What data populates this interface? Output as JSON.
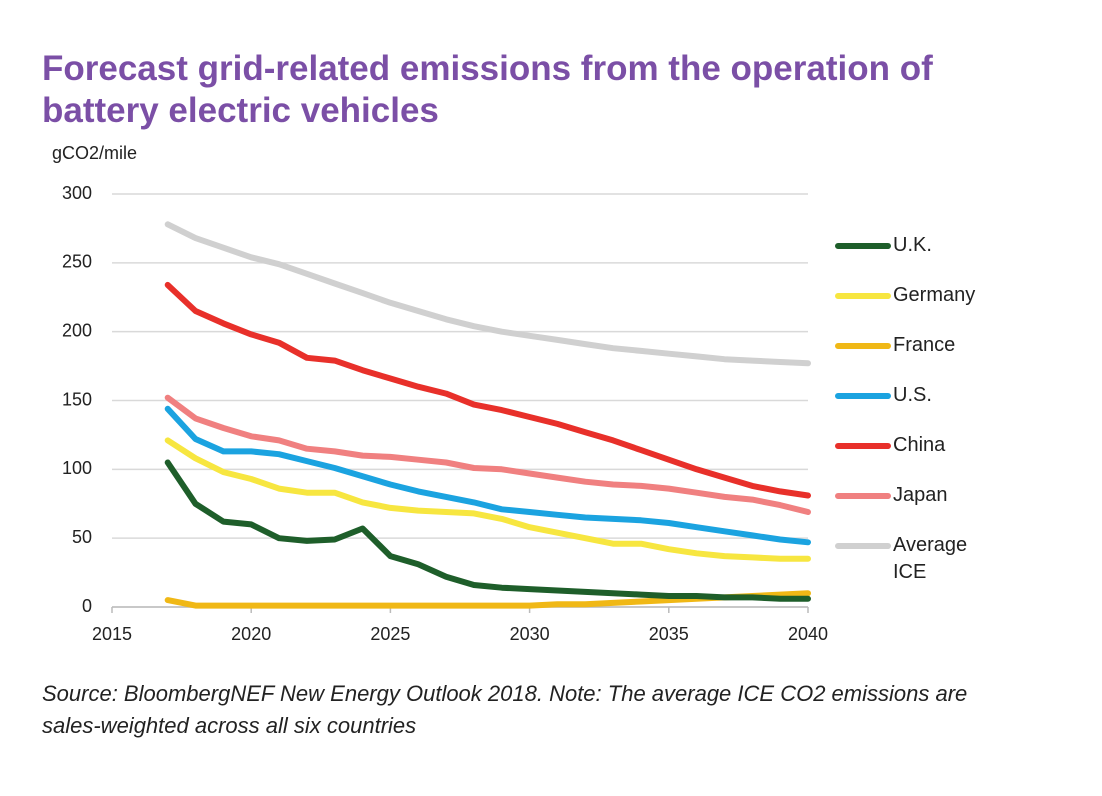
{
  "chart_data": {
    "type": "line",
    "title": "Forecast grid-related emissions from the operation of battery electric vehicles",
    "y_label": "gCO2/mile",
    "source": "Source: BloombergNEF New Energy Outlook 2018. Note: The average ICE CO2 emissions are sales-weighted across all six countries",
    "x": [
      2017,
      2018,
      2019,
      2020,
      2021,
      2022,
      2023,
      2024,
      2025,
      2026,
      2027,
      2028,
      2029,
      2030,
      2031,
      2032,
      2033,
      2034,
      2035,
      2036,
      2037,
      2038,
      2039,
      2040
    ],
    "series": [
      {
        "name": "U.K.",
        "color": "#1e5e2a",
        "values": [
          105,
          75,
          62,
          60,
          50,
          48,
          49,
          57,
          37,
          31,
          22,
          16,
          14,
          13,
          12,
          11,
          10,
          9,
          8,
          8,
          7,
          7,
          6,
          6
        ]
      },
      {
        "name": "Germany",
        "color": "#f7e640",
        "values": [
          121,
          108,
          98,
          93,
          86,
          83,
          83,
          76,
          72,
          70,
          69,
          68,
          64,
          58,
          54,
          50,
          46,
          46,
          42,
          39,
          37,
          36,
          35,
          35
        ]
      },
      {
        "name": "France",
        "color": "#f0b816",
        "values": [
          5,
          1,
          1,
          1,
          1,
          1,
          1,
          1,
          1,
          1,
          1,
          1,
          1,
          1,
          2,
          2,
          3,
          4,
          5,
          6,
          7,
          8,
          9,
          10
        ]
      },
      {
        "name": "U.S.",
        "color": "#1ba3e0",
        "values": [
          144,
          122,
          113,
          113,
          111,
          106,
          101,
          95,
          89,
          84,
          80,
          76,
          71,
          69,
          67,
          65,
          64,
          63,
          61,
          58,
          55,
          52,
          49,
          47
        ]
      },
      {
        "name": "China",
        "color": "#e8302a",
        "values": [
          234,
          215,
          206,
          198,
          192,
          181,
          179,
          172,
          166,
          160,
          155,
          147,
          143,
          138,
          133,
          127,
          121,
          114,
          107,
          100,
          94,
          88,
          84,
          81
        ]
      },
      {
        "name": "Japan",
        "color": "#f08080",
        "values": [
          152,
          137,
          130,
          124,
          121,
          115,
          113,
          110,
          109,
          107,
          105,
          101,
          100,
          97,
          94,
          91,
          89,
          88,
          86,
          83,
          80,
          78,
          74,
          69
        ]
      },
      {
        "name": "Average ICE",
        "color": "#d0d0d0",
        "values": [
          278,
          268,
          261,
          254,
          249,
          242,
          235,
          228,
          221,
          215,
          209,
          204,
          200,
          197,
          194,
          191,
          188,
          186,
          184,
          182,
          180,
          179,
          178,
          177
        ]
      }
    ],
    "xlim": [
      2015,
      2040
    ],
    "xticks": [
      2015,
      2020,
      2025,
      2030,
      2035,
      2040
    ],
    "ylim": [
      0,
      300
    ],
    "yticks": [
      0,
      50,
      100,
      150,
      200,
      250,
      300
    ],
    "grid": true,
    "legend": "right"
  }
}
